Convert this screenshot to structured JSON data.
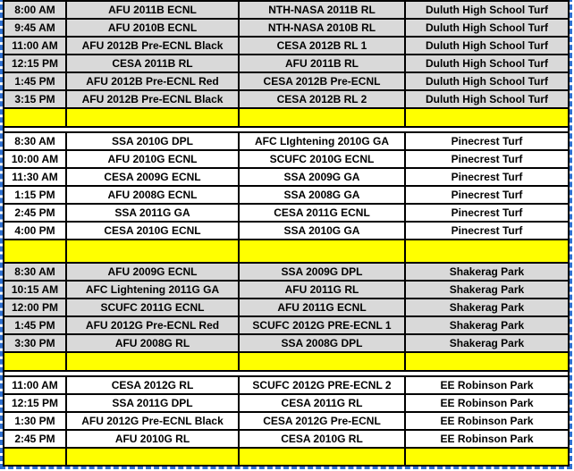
{
  "colors": {
    "gray_row": "#d9d9d9",
    "white_row": "#ffffff",
    "yellow_row": "#ffff00",
    "grid": "#000000",
    "ants": "#2d6fd1"
  },
  "table": {
    "columns": [
      "time",
      "home",
      "away",
      "location"
    ],
    "groups": [
      {
        "venue": "Duluth High School Turf",
        "row_style": "gray",
        "rows": [
          {
            "time": "8:00 AM",
            "home": "AFU 2011B ECNL",
            "away": "NTH-NASA 2011B RL",
            "location": "Duluth High School Turf"
          },
          {
            "time": "9:45 AM",
            "home": "AFU 2010B ECNL",
            "away": "NTH-NASA 2010B RL",
            "location": "Duluth High School Turf"
          },
          {
            "time": "11:00 AM",
            "home": "AFU 2012B Pre-ECNL Black",
            "away": "CESA 2012B RL 1",
            "location": "Duluth High School Turf"
          },
          {
            "time": "12:15 PM",
            "home": "CESA 2011B RL",
            "away": "AFU 2011B RL",
            "location": "Duluth High School Turf"
          },
          {
            "time": "1:45 PM",
            "home": "AFU 2012B Pre-ECNL Red",
            "away": "CESA 2012B Pre-ECNL",
            "location": "Duluth High School Turf"
          },
          {
            "time": "3:15 PM",
            "home": "AFU 2012B Pre-ECNL Black",
            "away": "CESA 2012B RL 2",
            "location": "Duluth High School Turf"
          }
        ]
      },
      {
        "venue": "Pinecrest Turf",
        "row_style": "white",
        "rows": [
          {
            "time": "8:30 AM",
            "home": "SSA 2010G DPL",
            "away": "AFC LIghtening 2010G GA",
            "location": "Pinecrest Turf"
          },
          {
            "time": "10:00 AM",
            "home": "AFU 2010G ECNL",
            "away": "SCUFC 2010G ECNL",
            "location": "Pinecrest Turf"
          },
          {
            "time": "11:30 AM",
            "home": "CESA 2009G ECNL",
            "away": "SSA  2009G GA",
            "location": "Pinecrest Turf"
          },
          {
            "time": "1:15 PM",
            "home": "AFU 2008G ECNL",
            "away": "SSA 2008G GA",
            "location": "Pinecrest Turf"
          },
          {
            "time": "2:45 PM",
            "home": "SSA 2011G GA",
            "away": "CESA 2011G ECNL",
            "location": "Pinecrest Turf"
          },
          {
            "time": "4:00 PM",
            "home": "CESA 2010G ECNL",
            "away": "SSA 2010G GA",
            "location": "Pinecrest Turf"
          }
        ]
      },
      {
        "venue": "Shakerag Park",
        "row_style": "gray",
        "rows": [
          {
            "time": "8:30 AM",
            "home": "AFU 2009G ECNL",
            "away": "SSA 2009G DPL",
            "location": "Shakerag Park"
          },
          {
            "time": "10:15 AM",
            "home": "AFC Lightening 2011G GA",
            "away": "AFU 2011G RL",
            "location": "Shakerag Park"
          },
          {
            "time": "12:00 PM",
            "home": "SCUFC 2011G ECNL",
            "away": "AFU 2011G ECNL",
            "location": "Shakerag Park"
          },
          {
            "time": "1:45 PM",
            "home": "AFU 2012G Pre-ECNL Red",
            "away": "SCUFC 2012G PRE-ECNL 1",
            "location": "Shakerag Park"
          },
          {
            "time": "3:30 PM",
            "home": "AFU 2008G RL",
            "away": "SSA 2008G DPL",
            "location": "Shakerag Park"
          }
        ]
      },
      {
        "venue": "EE Robinson Park",
        "row_style": "white",
        "rows": [
          {
            "time": "11:00 AM",
            "home": "CESA 2012G  RL",
            "away": "SCUFC 2012G PRE-ECNL 2",
            "location": "EE Robinson Park"
          },
          {
            "time": "12:15 PM",
            "home": "SSA 2011G DPL",
            "away": "CESA 2011G RL",
            "location": "EE Robinson Park"
          },
          {
            "time": "1:30 PM",
            "home": "AFU 2012G Pre-ECNL Black",
            "away": "CESA 2012G Pre-ECNL",
            "location": "EE Robinson Park"
          },
          {
            "time": "2:45 PM",
            "home": "AFU 2010G RL",
            "away": "CESA 2010G RL",
            "location": "EE Robinson Park"
          }
        ]
      }
    ]
  }
}
